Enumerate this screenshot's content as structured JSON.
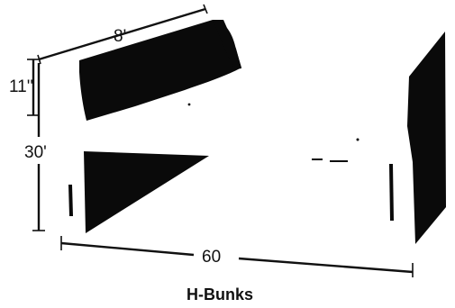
{
  "diagram": {
    "dimensions": {
      "top_length": "8'",
      "height_small": "11''",
      "height_large": "30'",
      "length": "60"
    },
    "caption": "H-Bunks"
  }
}
